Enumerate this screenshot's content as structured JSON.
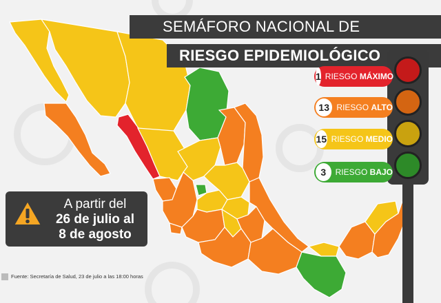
{
  "title": {
    "line1": "SEMÁFORO NACIONAL DE",
    "line2": "RIESGO EPIDEMIOLÓGICO"
  },
  "legend": [
    {
      "count": "1",
      "label_prefix": "RIESGO ",
      "label_level": "MÁXIMO",
      "color": "#e3232c"
    },
    {
      "count": "13",
      "label_prefix": "RIESGO ",
      "label_level": "ALTO",
      "color": "#f47f20"
    },
    {
      "count": "15",
      "label_prefix": "RIESGO ",
      "label_level": "MEDIO",
      "color": "#f5c518"
    },
    {
      "count": "3",
      "label_prefix": "RIESGO ",
      "label_level": "BAJO",
      "color": "#3daa35"
    }
  ],
  "notice": {
    "line1": "A partir del",
    "line2": "26 de julio al",
    "line3": "8 de agosto"
  },
  "source": "Fuente: Secretaría de Salud, 23 de julio a las 18:00 horas",
  "colors": {
    "maximo": "#e3232c",
    "alto": "#f47f20",
    "medio": "#f5c518",
    "bajo": "#3daa35",
    "dark_band": "#3b3b3b"
  },
  "icons": {
    "warning": "warning-triangle-icon",
    "traffic_light": "traffic-light-icon"
  }
}
